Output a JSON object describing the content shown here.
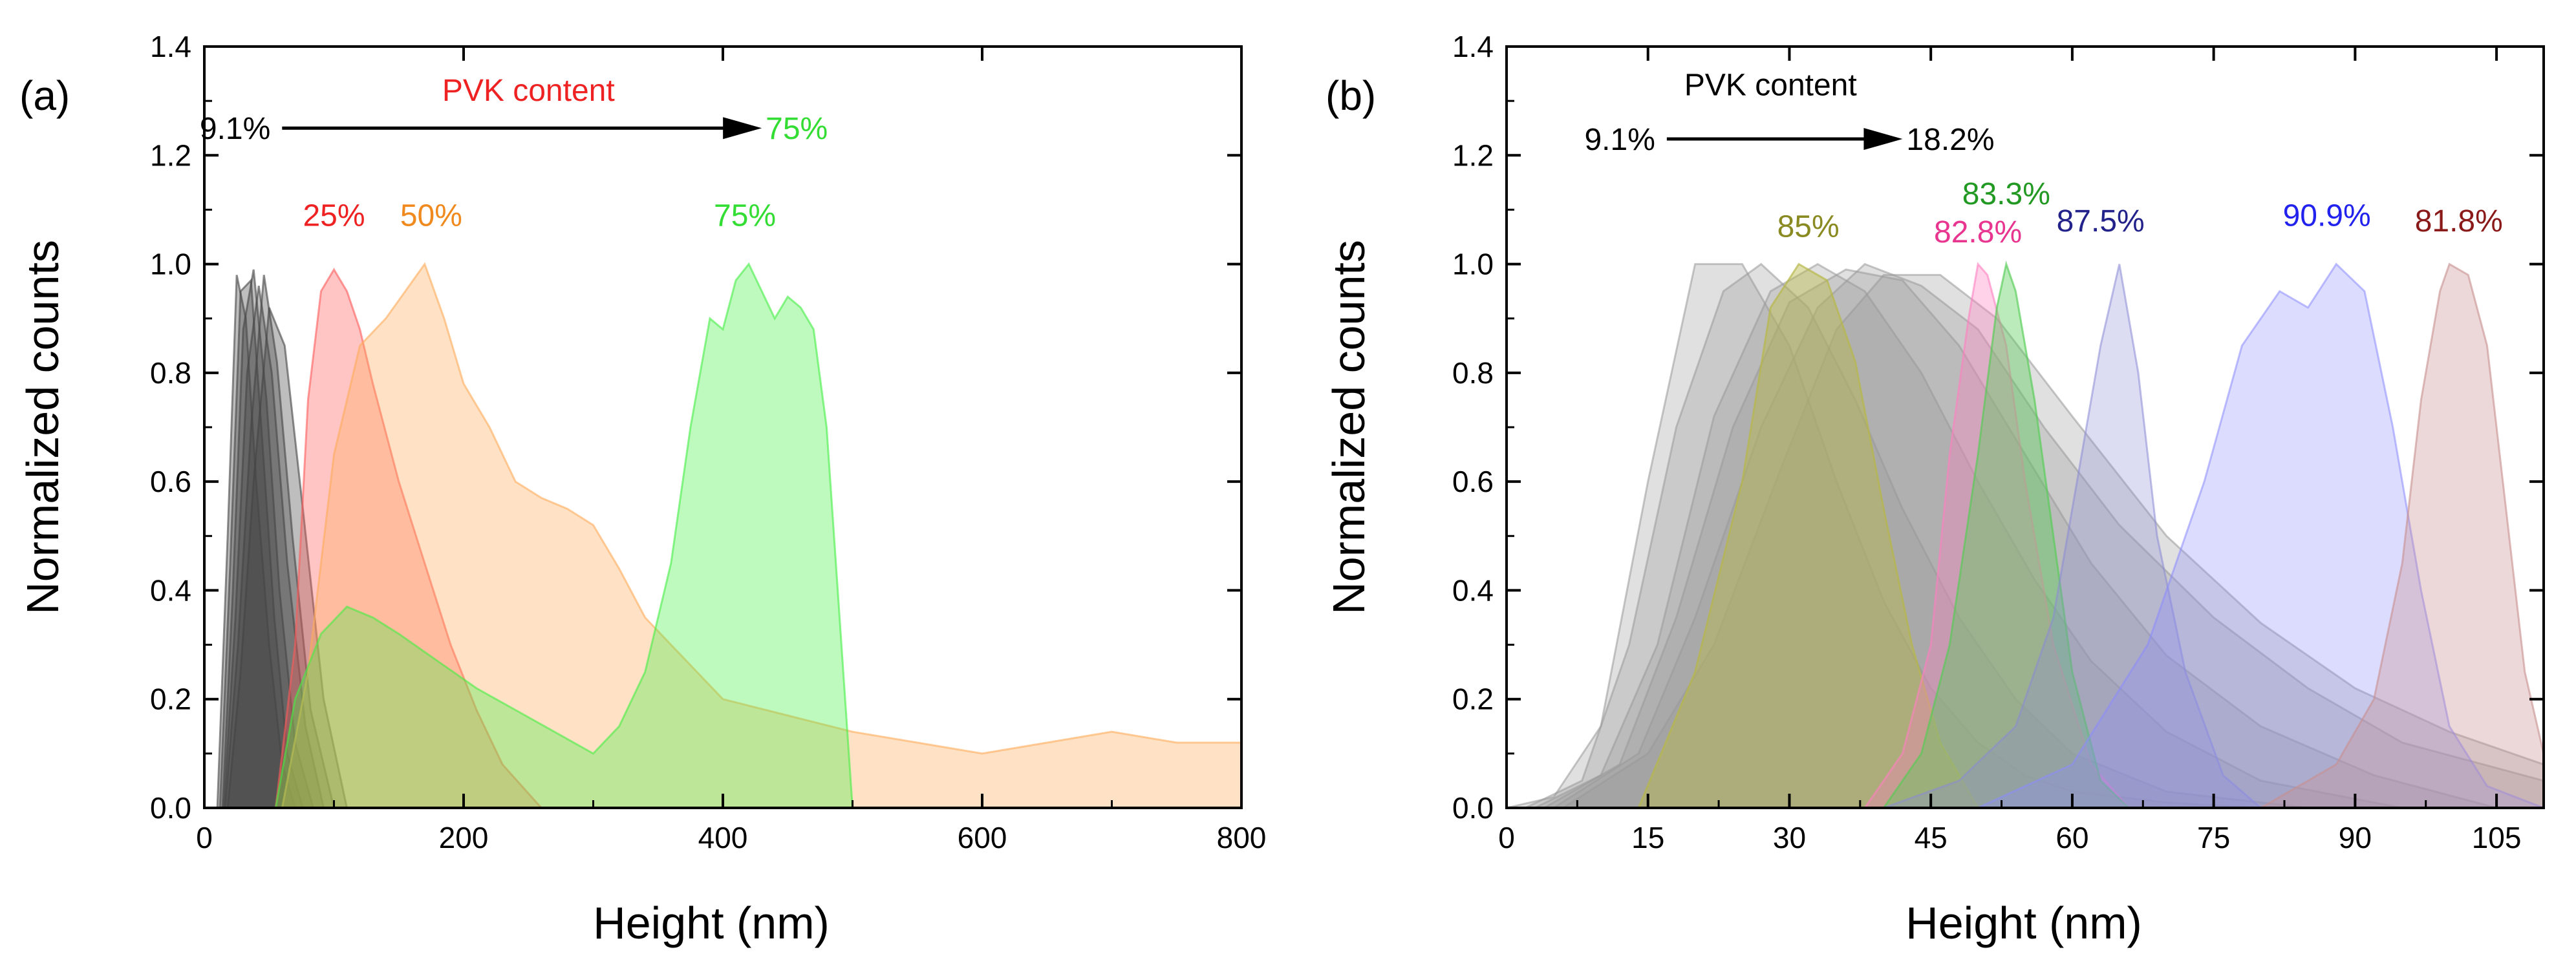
{
  "chart_data": [
    {
      "panel_label": "(a)",
      "type": "area",
      "xlabel": "Height (nm)",
      "ylabel": "Normalized counts",
      "xlim": [
        0,
        800
      ],
      "ylim": [
        0,
        1.4
      ],
      "xticks": [
        0,
        200,
        400,
        600,
        800
      ],
      "xtick_labels": [
        "0",
        "200",
        "400",
        "600",
        "800"
      ],
      "yticks": [
        0.0,
        0.2,
        0.4,
        0.6,
        0.8,
        1.0,
        1.2,
        1.4
      ],
      "ytick_labels": [
        "0.0",
        "0.2",
        "0.4",
        "0.6",
        "0.8",
        "1.0",
        "1.2",
        "1.4"
      ],
      "arrow": {
        "start_label": "9.1%",
        "end_label": "75%",
        "end_color": "#33dd33",
        "title": "PVK content",
        "title_color": "#ee2222",
        "y": 1.25,
        "x_start": 60,
        "x_end": 430,
        "title_x": 250,
        "title_y": 1.3
      },
      "annotations": [
        {
          "text": "25%",
          "x": 100,
          "y": 1.07,
          "color": "#ee2222"
        },
        {
          "text": "50%",
          "x": 175,
          "y": 1.07,
          "color": "#f08a1e"
        },
        {
          "text": "75%",
          "x": 417,
          "y": 1.07,
          "color": "#33dd33"
        }
      ],
      "series": [
        {
          "name": "9.1% a",
          "color": "#444444",
          "opacity": 0.35,
          "x": [
            10,
            18,
            25,
            32,
            40,
            50,
            60,
            70
          ],
          "y": [
            0,
            0.5,
            0.98,
            0.9,
            0.6,
            0.3,
            0.08,
            0
          ]
        },
        {
          "name": "9.1% b",
          "color": "#444444",
          "opacity": 0.35,
          "x": [
            12,
            20,
            28,
            36,
            44,
            54,
            64,
            76
          ],
          "y": [
            0,
            0.45,
            0.95,
            0.97,
            0.7,
            0.35,
            0.1,
            0
          ]
        },
        {
          "name": "9.1% c",
          "color": "#444444",
          "opacity": 0.35,
          "x": [
            14,
            22,
            30,
            38,
            48,
            58,
            70,
            84
          ],
          "y": [
            0,
            0.4,
            0.88,
            0.99,
            0.75,
            0.4,
            0.12,
            0
          ]
        },
        {
          "name": "9.1% d",
          "color": "#444444",
          "opacity": 0.35,
          "x": [
            15,
            24,
            33,
            42,
            52,
            64,
            78,
            92
          ],
          "y": [
            0,
            0.35,
            0.8,
            0.96,
            0.8,
            0.45,
            0.15,
            0
          ]
        },
        {
          "name": "9.1% e",
          "color": "#444444",
          "opacity": 0.35,
          "x": [
            16,
            26,
            36,
            46,
            56,
            68,
            82,
            100
          ],
          "y": [
            0,
            0.3,
            0.7,
            0.98,
            0.82,
            0.5,
            0.18,
            0
          ]
        },
        {
          "name": "9.1% f",
          "color": "#444444",
          "opacity": 0.35,
          "x": [
            18,
            28,
            38,
            50,
            62,
            76,
            92,
            110
          ],
          "y": [
            0,
            0.25,
            0.6,
            0.92,
            0.85,
            0.55,
            0.2,
            0
          ]
        },
        {
          "name": "25%",
          "color": "#ff5a5a",
          "opacity": 0.35,
          "x": [
            55,
            70,
            80,
            90,
            100,
            110,
            120,
            130,
            150,
            170,
            190,
            210,
            230,
            260
          ],
          "y": [
            0,
            0.3,
            0.75,
            0.95,
            0.99,
            0.95,
            0.88,
            0.78,
            0.6,
            0.45,
            0.3,
            0.18,
            0.08,
            0
          ]
        },
        {
          "name": "50%",
          "color": "#ffac5a",
          "opacity": 0.35,
          "x": [
            60,
            80,
            100,
            120,
            140,
            155,
            170,
            185,
            200,
            220,
            240,
            260,
            280,
            300,
            320,
            340,
            360,
            380,
            400,
            450,
            500,
            550,
            600,
            650,
            700,
            750,
            800
          ],
          "y": [
            0,
            0.25,
            0.65,
            0.85,
            0.9,
            0.95,
            1.0,
            0.9,
            0.78,
            0.7,
            0.6,
            0.57,
            0.55,
            0.52,
            0.44,
            0.35,
            0.3,
            0.25,
            0.2,
            0.17,
            0.14,
            0.12,
            0.1,
            0.12,
            0.14,
            0.12,
            0.12
          ]
        },
        {
          "name": "75%",
          "color": "#44ee44",
          "opacity": 0.35,
          "x": [
            55,
            70,
            90,
            110,
            130,
            150,
            180,
            210,
            240,
            270,
            300,
            320,
            340,
            360,
            375,
            390,
            400,
            410,
            420,
            430,
            440,
            450,
            460,
            470,
            480,
            490,
            500
          ],
          "y": [
            0,
            0.2,
            0.32,
            0.37,
            0.35,
            0.32,
            0.27,
            0.22,
            0.18,
            0.14,
            0.1,
            0.15,
            0.25,
            0.45,
            0.7,
            0.9,
            0.88,
            0.97,
            1.0,
            0.95,
            0.9,
            0.94,
            0.92,
            0.88,
            0.7,
            0.35,
            0
          ]
        }
      ]
    },
    {
      "panel_label": "(b)",
      "type": "area",
      "xlabel": "Height (nm)",
      "ylabel": "Normalized counts",
      "xlim": [
        0,
        110
      ],
      "ylim": [
        0,
        1.4
      ],
      "xticks": [
        0,
        15,
        30,
        45,
        60,
        75,
        90,
        105
      ],
      "xtick_labels": [
        "0",
        "15",
        "30",
        "45",
        "60",
        "75",
        "90",
        "105"
      ],
      "yticks": [
        0.0,
        0.2,
        0.4,
        0.6,
        0.8,
        1.0,
        1.2,
        1.4
      ],
      "ytick_labels": [
        "0.0",
        "0.2",
        "0.4",
        "0.6",
        "0.8",
        "1.0",
        "1.2",
        "1.4"
      ],
      "arrow": {
        "start_label": "9.1%",
        "end_label": "18.2%",
        "end_color": "#000000",
        "title": "PVK content",
        "title_color": "#000000",
        "y": 1.23,
        "x_start": 17,
        "x_end": 42,
        "title_x": 28,
        "title_y": 1.31
      },
      "annotations": [
        {
          "text": "85%",
          "x": 32,
          "y": 1.05,
          "color": "#8a8a22"
        },
        {
          "text": "82.8%",
          "x": 50,
          "y": 1.04,
          "color": "#e8358f"
        },
        {
          "text": "83.3%",
          "x": 53,
          "y": 1.11,
          "color": "#229922"
        },
        {
          "text": "87.5%",
          "x": 63,
          "y": 1.06,
          "color": "#22228a"
        },
        {
          "text": "90.9%",
          "x": 87,
          "y": 1.07,
          "color": "#2222ee"
        },
        {
          "text": "81.8%",
          "x": 101,
          "y": 1.06,
          "color": "#8a1a1a"
        }
      ],
      "series": [
        {
          "name": "9.1% a",
          "color": "#999999",
          "opacity": 0.3,
          "x": [
            0,
            5,
            10,
            15,
            20,
            25,
            30,
            35,
            40,
            45,
            50,
            55,
            60,
            70,
            80
          ],
          "y": [
            0,
            0.02,
            0.15,
            0.6,
            1.0,
            1.0,
            0.85,
            0.6,
            0.38,
            0.22,
            0.12,
            0.06,
            0.03,
            0.01,
            0
          ]
        },
        {
          "name": "9.1% b",
          "color": "#999999",
          "opacity": 0.3,
          "x": [
            2,
            8,
            13,
            18,
            23,
            27,
            32,
            37,
            42,
            48,
            54,
            60,
            70,
            85
          ],
          "y": [
            0,
            0.05,
            0.3,
            0.7,
            0.95,
            1.0,
            0.92,
            0.75,
            0.55,
            0.35,
            0.2,
            0.1,
            0.03,
            0
          ]
        },
        {
          "name": "9.1% c",
          "color": "#999999",
          "opacity": 0.3,
          "x": [
            3,
            10,
            16,
            22,
            28,
            33,
            38,
            44,
            50,
            56,
            62,
            70,
            80,
            95
          ],
          "y": [
            0,
            0.06,
            0.3,
            0.72,
            0.95,
            1.0,
            0.95,
            0.8,
            0.6,
            0.42,
            0.27,
            0.14,
            0.05,
            0
          ]
        },
        {
          "name": "9.1% d",
          "color": "#999999",
          "opacity": 0.3,
          "x": [
            4,
            12,
            18,
            24,
            30,
            36,
            42,
            48,
            55,
            62,
            70,
            80,
            92,
            105
          ],
          "y": [
            0,
            0.08,
            0.35,
            0.7,
            0.93,
            0.99,
            0.97,
            0.85,
            0.65,
            0.45,
            0.28,
            0.15,
            0.06,
            0
          ]
        },
        {
          "name": "9.1% e",
          "color": "#999999",
          "opacity": 0.3,
          "x": [
            5,
            14,
            20,
            27,
            33,
            38,
            44,
            50,
            57,
            65,
            75,
            85,
            95,
            110
          ],
          "y": [
            0,
            0.1,
            0.35,
            0.7,
            0.92,
            1.0,
            0.96,
            0.88,
            0.7,
            0.52,
            0.35,
            0.22,
            0.12,
            0.05
          ]
        },
        {
          "name": "9.1% f",
          "color": "#999999",
          "opacity": 0.3,
          "x": [
            6,
            15,
            22,
            29,
            35,
            40,
            46,
            52,
            60,
            70,
            80,
            90,
            100,
            110
          ],
          "y": [
            0,
            0.1,
            0.3,
            0.62,
            0.88,
            0.98,
            0.98,
            0.9,
            0.72,
            0.5,
            0.34,
            0.22,
            0.14,
            0.08
          ]
        },
        {
          "name": "85%",
          "color": "#b8b84a",
          "opacity": 0.45,
          "x": [
            14,
            20,
            25,
            28,
            31,
            34,
            37,
            40,
            43,
            46,
            50
          ],
          "y": [
            0,
            0.25,
            0.6,
            0.92,
            1.0,
            0.97,
            0.82,
            0.55,
            0.3,
            0.12,
            0
          ]
        },
        {
          "name": "82.8%",
          "color": "#ff7fbf",
          "opacity": 0.35,
          "x": [
            38,
            42,
            45,
            47,
            49,
            50,
            51,
            53,
            55,
            58,
            62,
            66
          ],
          "y": [
            0,
            0.1,
            0.3,
            0.65,
            0.9,
            1.0,
            0.98,
            0.85,
            0.6,
            0.3,
            0.08,
            0
          ]
        },
        {
          "name": "83.3%",
          "color": "#55cc55",
          "opacity": 0.4,
          "x": [
            40,
            44,
            47,
            50,
            52,
            53,
            54,
            56,
            58,
            60,
            63,
            66
          ],
          "y": [
            0,
            0.1,
            0.3,
            0.65,
            0.92,
            1.0,
            0.95,
            0.75,
            0.5,
            0.25,
            0.05,
            0
          ]
        },
        {
          "name": "87.5%",
          "color": "#8a8ad6",
          "opacity": 0.3,
          "x": [
            40,
            48,
            54,
            58,
            61,
            63,
            65,
            67,
            69,
            72,
            76,
            80
          ],
          "y": [
            0,
            0.05,
            0.15,
            0.35,
            0.65,
            0.85,
            1.0,
            0.8,
            0.5,
            0.25,
            0.06,
            0
          ]
        },
        {
          "name": "90.9%",
          "color": "#8a8aff",
          "opacity": 0.3,
          "x": [
            50,
            60,
            68,
            74,
            78,
            82,
            85,
            88,
            91,
            94,
            97,
            100,
            104,
            110
          ],
          "y": [
            0,
            0.08,
            0.3,
            0.6,
            0.85,
            0.95,
            0.92,
            1.0,
            0.95,
            0.7,
            0.4,
            0.15,
            0.04,
            0
          ]
        },
        {
          "name": "81.8%",
          "color": "#c89090",
          "opacity": 0.35,
          "x": [
            80,
            88,
            92,
            95,
            97,
            99,
            100,
            102,
            104,
            106,
            108,
            110
          ],
          "y": [
            0,
            0.08,
            0.2,
            0.45,
            0.75,
            0.95,
            1.0,
            0.98,
            0.85,
            0.55,
            0.25,
            0.1
          ]
        }
      ]
    }
  ]
}
